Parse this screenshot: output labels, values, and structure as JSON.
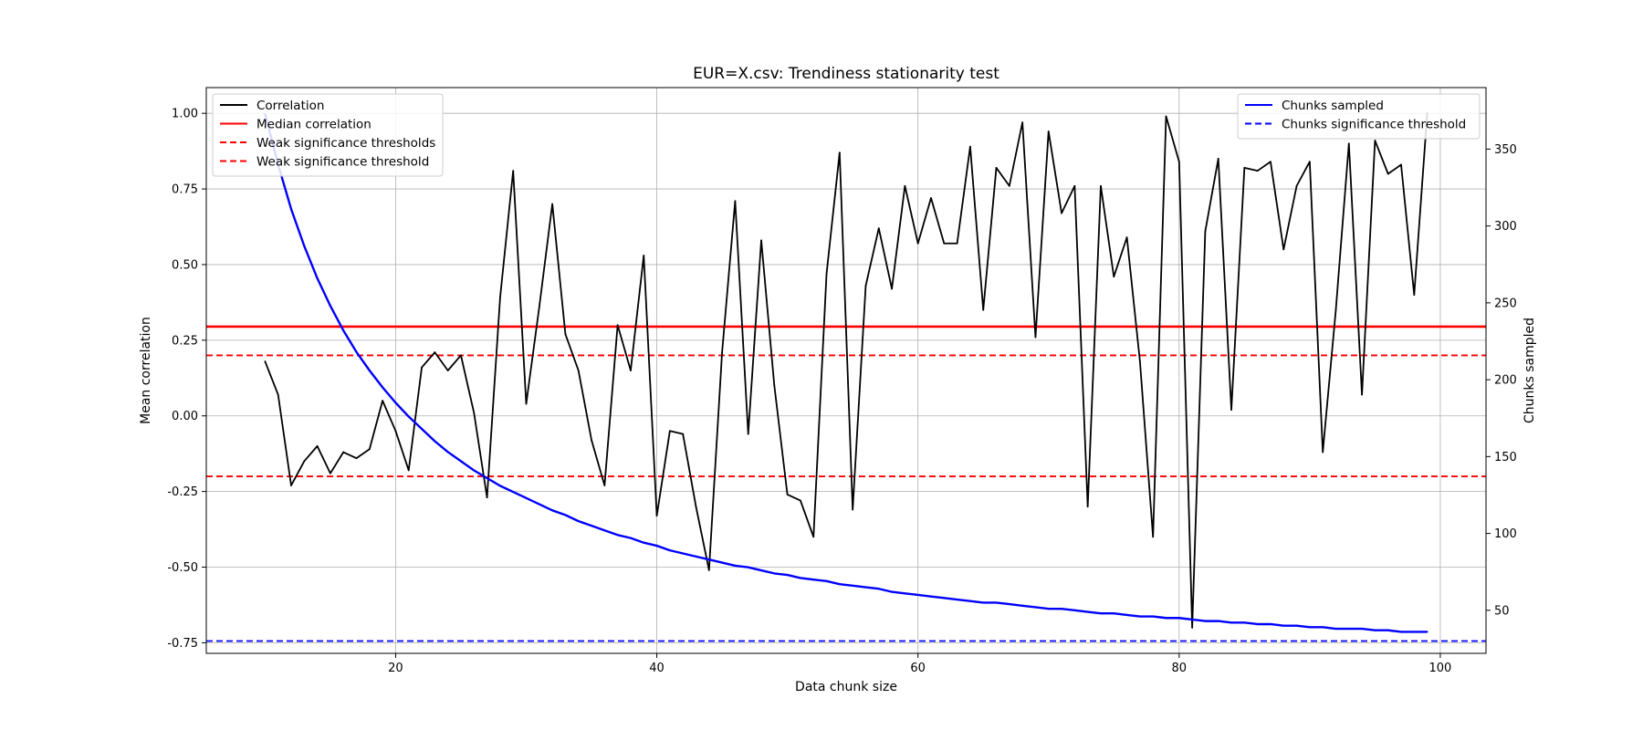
{
  "chart_data": {
    "type": "line",
    "title": "EUR=X.csv: Trendiness stationarity test",
    "xlabel": "Data chunk size",
    "ylabel": "Mean correlation",
    "y2label": "Chunks sampled",
    "xlim": [
      5.5,
      103.5
    ],
    "ylim": [
      -0.785,
      1.085
    ],
    "y2lim": [
      22,
      390
    ],
    "xticks": [
      20,
      40,
      60,
      80,
      100
    ],
    "yticks": [
      -0.75,
      -0.5,
      -0.25,
      0.0,
      0.25,
      0.5,
      0.75,
      1.0
    ],
    "y2ticks": [
      50,
      100,
      150,
      200,
      250,
      300,
      350
    ],
    "grid": true,
    "x": [
      10,
      11,
      12,
      13,
      14,
      15,
      16,
      17,
      18,
      19,
      20,
      21,
      22,
      23,
      24,
      25,
      26,
      27,
      28,
      29,
      30,
      31,
      32,
      33,
      34,
      35,
      36,
      37,
      38,
      39,
      40,
      41,
      42,
      43,
      44,
      45,
      46,
      47,
      48,
      49,
      50,
      51,
      52,
      53,
      54,
      55,
      56,
      57,
      58,
      59,
      60,
      61,
      62,
      63,
      64,
      65,
      66,
      67,
      68,
      69,
      70,
      71,
      72,
      73,
      74,
      75,
      76,
      77,
      78,
      79,
      80,
      81,
      82,
      83,
      84,
      85,
      86,
      87,
      88,
      89,
      90,
      91,
      92,
      93,
      94,
      95,
      96,
      97,
      98,
      99
    ],
    "series": [
      {
        "name": "Correlation",
        "axis": "left",
        "color": "#000000",
        "style": "solid",
        "values": [
          0.18,
          0.07,
          -0.23,
          -0.15,
          -0.1,
          -0.19,
          -0.12,
          -0.14,
          -0.11,
          0.05,
          -0.05,
          -0.18,
          0.16,
          0.21,
          0.15,
          0.2,
          0.01,
          -0.27,
          0.39,
          0.81,
          0.04,
          0.36,
          0.7,
          0.27,
          0.15,
          -0.08,
          -0.23,
          0.3,
          0.15,
          0.53,
          -0.33,
          -0.05,
          -0.06,
          -0.3,
          -0.51,
          0.21,
          0.71,
          -0.06,
          0.58,
          0.1,
          -0.26,
          -0.28,
          -0.4,
          0.47,
          0.87,
          -0.31,
          0.43,
          0.62,
          0.42,
          0.76,
          0.57,
          0.72,
          0.57,
          0.57,
          0.89,
          0.35,
          0.82,
          0.76,
          0.97,
          0.26,
          0.94,
          0.67,
          0.76,
          -0.3,
          0.76,
          0.46,
          0.59,
          0.18,
          -0.4,
          0.99,
          0.84,
          -0.7,
          0.61,
          0.85,
          0.02,
          0.82,
          0.81,
          0.84,
          0.55,
          0.76,
          0.84,
          -0.12,
          0.35,
          0.9,
          0.07,
          0.91,
          0.8,
          0.83,
          0.4,
          1.0
        ]
      },
      {
        "name": "Chunks sampled",
        "axis": "right",
        "color": "#0000ff",
        "style": "solid",
        "values": [
          373,
          340,
          311,
          287,
          266,
          248,
          232,
          218,
          206,
          195,
          185,
          176,
          168,
          160,
          153,
          147,
          141,
          136,
          131,
          127,
          123,
          119,
          115,
          112,
          108,
          105,
          102,
          99,
          97,
          94,
          92,
          89,
          87,
          85,
          83,
          81,
          79,
          78,
          76,
          74,
          73,
          71,
          70,
          69,
          67,
          66,
          65,
          64,
          62,
          61,
          60,
          59,
          58,
          57,
          56,
          55,
          55,
          54,
          53,
          52,
          51,
          51,
          50,
          49,
          48,
          48,
          47,
          46,
          46,
          45,
          45,
          44,
          43,
          43,
          42,
          42,
          41,
          41,
          40,
          40,
          39,
          39,
          38,
          38,
          38,
          37,
          37,
          36,
          36,
          36
        ]
      }
    ],
    "hlines": [
      {
        "name": "Median correlation",
        "axis": "left",
        "y": 0.295,
        "color": "#ff0000",
        "style": "solid"
      },
      {
        "name": "Weak significance thresholds",
        "axis": "left",
        "y": 0.2,
        "color": "#ff0000",
        "style": "dashed"
      },
      {
        "name": "Weak significance threshold",
        "axis": "left",
        "y": -0.2,
        "color": "#ff0000",
        "style": "dashed"
      },
      {
        "name": "Chunks significance threshold",
        "axis": "right",
        "y": 30,
        "color": "#0000ff",
        "style": "dashed"
      }
    ],
    "legend_left": {
      "placement": "top-left",
      "entries": [
        {
          "label": "Correlation",
          "color": "#000000",
          "style": "solid"
        },
        {
          "label": "Median correlation",
          "color": "#ff0000",
          "style": "solid"
        },
        {
          "label": "Weak significance thresholds",
          "color": "#ff0000",
          "style": "dashed"
        },
        {
          "label": "Weak significance threshold",
          "color": "#ff0000",
          "style": "dashed"
        }
      ]
    },
    "legend_right": {
      "placement": "top-right",
      "entries": [
        {
          "label": "Chunks sampled",
          "color": "#0000ff",
          "style": "solid"
        },
        {
          "label": "Chunks significance threshold",
          "color": "#0000ff",
          "style": "dashed"
        }
      ]
    }
  }
}
